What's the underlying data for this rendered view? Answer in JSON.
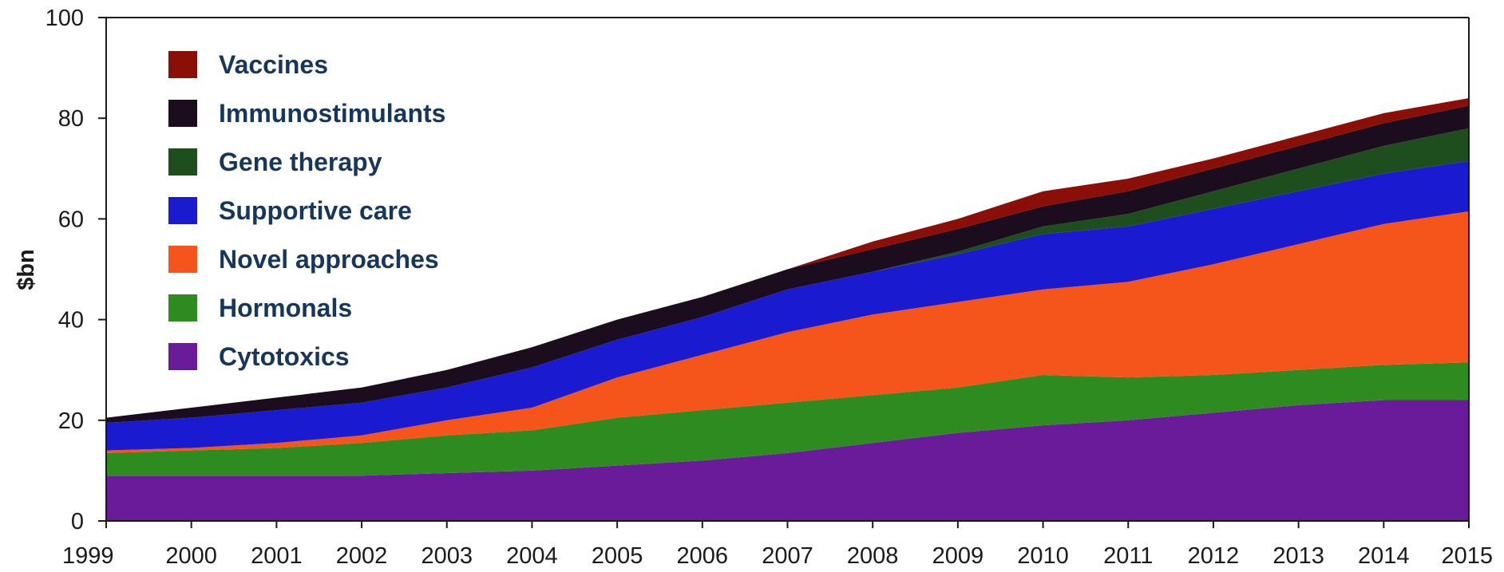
{
  "chart_data": {
    "type": "area",
    "stacked": true,
    "title": "",
    "xlabel": "",
    "ylabel": "$bn",
    "ylim": [
      0,
      100
    ],
    "yticks": [
      0,
      20,
      40,
      60,
      80,
      100
    ],
    "grid": false,
    "legend_position": "top-left",
    "categories": [
      "1999",
      "2000",
      "2001",
      "2002",
      "2003",
      "2004",
      "2005",
      "2006",
      "2007",
      "2008",
      "2009",
      "2010",
      "2011",
      "2012",
      "2013",
      "2014",
      "2015"
    ],
    "series": [
      {
        "name": "Cytotoxics",
        "color": "#6a1b9a",
        "values": [
          9,
          9,
          9,
          9,
          9.5,
          10,
          11,
          12,
          13.5,
          15.5,
          17.5,
          19,
          20,
          21.5,
          23,
          24,
          24
        ]
      },
      {
        "name": "Hormonals",
        "color": "#2e8b1f",
        "values": [
          4.5,
          5,
          5.5,
          6.5,
          7.5,
          8,
          9.5,
          10,
          10,
          9.5,
          9,
          10,
          8.5,
          7.5,
          7,
          7,
          7.5
        ]
      },
      {
        "name": "Novel approaches",
        "color": "#f5541a",
        "values": [
          0.5,
          0.5,
          1,
          1.5,
          3,
          4.5,
          8,
          11,
          14,
          16,
          17,
          17,
          19,
          22,
          25,
          28,
          30
        ]
      },
      {
        "name": "Supportive care",
        "color": "#1a1ad0",
        "values": [
          5.5,
          6,
          6.5,
          6.5,
          6.5,
          8,
          7.5,
          7.5,
          8.5,
          8.5,
          9.5,
          11,
          11,
          11,
          10.5,
          10,
          10
        ]
      },
      {
        "name": "Gene therapy",
        "color": "#1e4d1e",
        "values": [
          0,
          0,
          0,
          0,
          0,
          0,
          0,
          0,
          0,
          0,
          0.5,
          1.5,
          2.5,
          3.5,
          4.5,
          5.5,
          6.5
        ]
      },
      {
        "name": "Immunostimulants",
        "color": "#1c0d1e",
        "values": [
          1,
          2,
          2.5,
          3,
          3.5,
          4,
          4,
          4,
          4,
          4.5,
          4.5,
          4,
          4.5,
          4.5,
          4.5,
          4.5,
          4.5
        ]
      },
      {
        "name": "Vaccines",
        "color": "#8a0f08",
        "values": [
          0,
          0,
          0,
          0,
          0,
          0,
          0,
          0,
          0,
          1.5,
          2,
          3,
          2.5,
          2,
          2,
          2,
          1.5
        ]
      }
    ],
    "legend_order": [
      "Vaccines",
      "Immunostimulants",
      "Gene therapy",
      "Supportive care",
      "Novel approaches",
      "Hormonals",
      "Cytotoxics"
    ]
  }
}
